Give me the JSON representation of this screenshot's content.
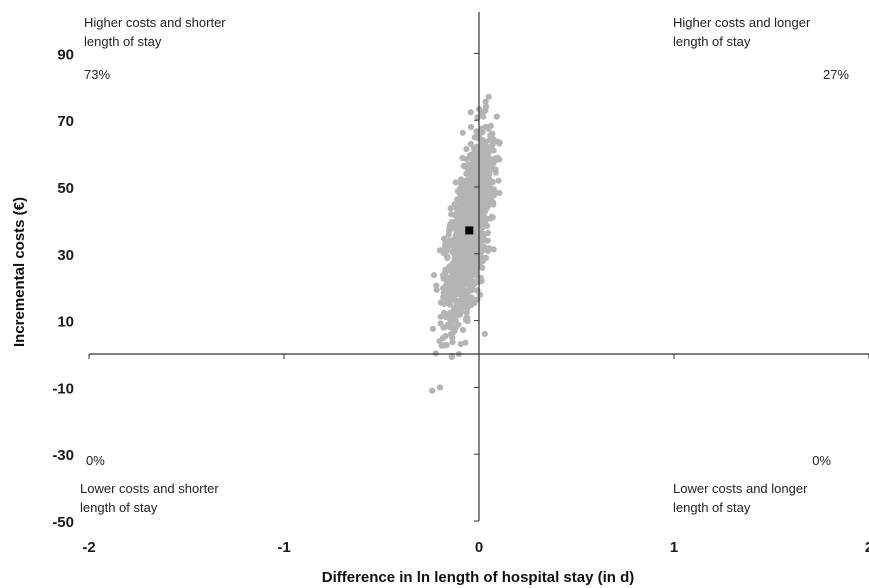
{
  "chart_data": {
    "type": "scatter",
    "xlabel": "Difference in ln length of hospital stay (in d)",
    "ylabel": "Incremental costs (€)",
    "xlim": [
      -2,
      2
    ],
    "ylim": [
      -50,
      100
    ],
    "x_ticks": [
      -2,
      -1,
      0,
      1,
      2
    ],
    "y_ticks": [
      -50,
      -30,
      -10,
      10,
      30,
      50,
      70,
      90
    ],
    "grid": false,
    "colors": {
      "cloud": "#b4b4b4",
      "point_estimate": "#000000",
      "axes": "#333333"
    },
    "point_estimate": {
      "x": -0.05,
      "y": 37
    },
    "cloud_summary": {
      "mean_x": -0.05,
      "mean_y": 37,
      "x_range": [
        -0.24,
        0.18
      ],
      "y_range": [
        -11,
        78
      ]
    },
    "outliers": [
      {
        "x": -0.24,
        "y": -11
      },
      {
        "x": -0.2,
        "y": -10
      },
      {
        "x": 0.05,
        "y": 77
      },
      {
        "x": 0.03,
        "y": 6
      }
    ],
    "annotations": {
      "top_left": {
        "line1": "Higher costs and shorter",
        "line2": "length of stay",
        "pct": "73%"
      },
      "top_right": {
        "line1": "Higher costs and longer",
        "line2": "length of stay",
        "pct": "27%"
      },
      "bottom_left": {
        "line1": "Lower costs and shorter",
        "line2": "length of stay",
        "pct": "0%"
      },
      "bottom_right": {
        "line1": "Lower costs and longer",
        "line2": "length of stay",
        "pct": "0%"
      }
    }
  }
}
